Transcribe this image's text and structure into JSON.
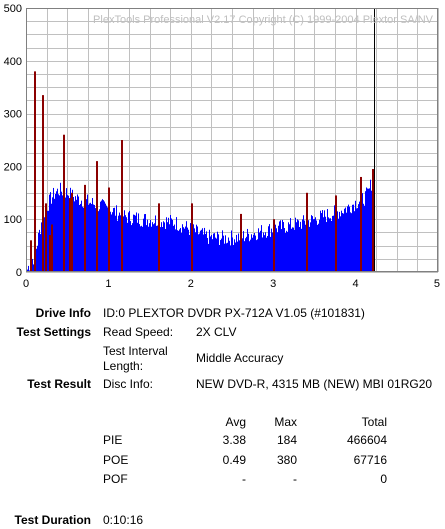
{
  "chart_data": {
    "type": "bar",
    "title": "PlexTools Professional V2.17 Copyright (C) 1999-2004 Plextor SA/NV",
    "xlim": [
      0,
      5
    ],
    "ylim": [
      0,
      500
    ],
    "x_ticks": [
      "0",
      "1",
      "2",
      "3",
      "4",
      "5"
    ],
    "y_ticks": [
      "0",
      "100",
      "200",
      "300",
      "400",
      "500"
    ],
    "grid": true,
    "disc_end_gb": 4.22,
    "series": [
      {
        "name": "PIE",
        "color": "#0000ff",
        "profile_gb": [
          0.0,
          0.02,
          0.05,
          0.1,
          0.2,
          0.3,
          0.35,
          0.4,
          0.5,
          0.6,
          0.7,
          0.8,
          0.9,
          1.0,
          1.1,
          1.2,
          1.4,
          1.6,
          1.8,
          2.0,
          2.2,
          2.4,
          2.6,
          2.8,
          3.0,
          3.2,
          3.4,
          3.6,
          3.8,
          3.9,
          4.0,
          4.1,
          4.15,
          4.2,
          4.22
        ],
        "profile_values": [
          0,
          8,
          20,
          30,
          108,
          140,
          150,
          155,
          150,
          140,
          135,
          130,
          125,
          120,
          112,
          105,
          100,
          98,
          94,
          80,
          66,
          64,
          66,
          75,
          82,
          88,
          95,
          105,
          115,
          122,
          132,
          140,
          150,
          175,
          170
        ]
      },
      {
        "name": "POE",
        "color": "#8b0000",
        "peaks_gb": [
          0.05,
          0.1,
          0.2,
          0.23,
          0.28,
          0.3,
          0.45,
          0.52,
          0.55,
          0.7,
          0.85,
          1.0,
          1.15,
          1.6,
          2.0,
          2.6,
          3.0,
          3.4,
          3.75,
          4.05,
          4.2
        ],
        "peaks_values": [
          60,
          380,
          335,
          130,
          70,
          90,
          260,
          140,
          150,
          165,
          210,
          160,
          250,
          130,
          130,
          110,
          100,
          150,
          145,
          180,
          195
        ]
      }
    ]
  },
  "drive_info": {
    "label": "Drive Info",
    "value": "ID:0 PLEXTOR DVDR PX-712A V1.05 (#101831)"
  },
  "test_settings": {
    "label": "Test Settings",
    "read_speed_label": "Read Speed:",
    "read_speed_value": "2X CLV",
    "interval_label_line1": "Test Interval",
    "interval_label_line2": "Length:",
    "interval_value": "Middle Accuracy"
  },
  "test_result": {
    "label": "Test Result",
    "disc_info_label": "Disc Info:",
    "disc_info_value": "NEW DVD-R, 4315 MB (NEW) MBI 01RG20"
  },
  "stats": {
    "headers": {
      "avg": "Avg",
      "max": "Max",
      "total": "Total"
    },
    "rows": [
      {
        "name": "PIE",
        "avg": "3.38",
        "max": "184",
        "total": "466604"
      },
      {
        "name": "POE",
        "avg": "0.49",
        "max": "380",
        "total": "67716"
      },
      {
        "name": "POF",
        "avg": "-",
        "max": "-",
        "total": "0"
      }
    ]
  },
  "test_duration": {
    "label": "Test Duration",
    "value": "0:10:16"
  }
}
